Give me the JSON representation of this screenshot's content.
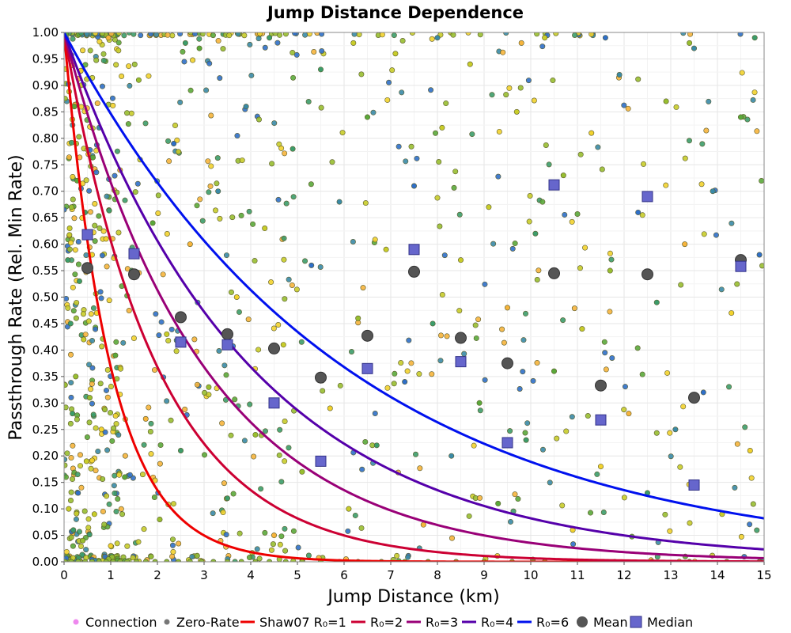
{
  "chart_data": {
    "type": "scatter",
    "title": "Jump Distance Dependence",
    "xlabel": "Jump Distance (km)",
    "ylabel": "Passthrough Rate (Rel. Min Rate)",
    "xlim": [
      0,
      15
    ],
    "ylim": [
      0,
      1
    ],
    "x_ticks": [
      "0",
      "1",
      "2",
      "3",
      "4",
      "5",
      "6",
      "7",
      "8",
      "9",
      "10",
      "11",
      "12",
      "13",
      "14",
      "15"
    ],
    "y_ticks": [
      "0.00",
      "0.05",
      "0.10",
      "0.15",
      "0.20",
      "0.25",
      "0.30",
      "0.35",
      "0.40",
      "0.45",
      "0.50",
      "0.55",
      "0.60",
      "0.65",
      "0.70",
      "0.75",
      "0.80",
      "0.85",
      "0.90",
      "0.95",
      "1.00"
    ],
    "grid": true,
    "legend_position": "bottom",
    "legend": [
      {
        "label": "Connection",
        "kind": "dot",
        "color": "#ee88ee"
      },
      {
        "label": "Zero-Rate",
        "kind": "dot",
        "color": "#777777"
      },
      {
        "label": "Shaw07 R₀=1",
        "kind": "line",
        "color": "#ee0000"
      },
      {
        "label": "R₀=2",
        "kind": "line",
        "color": "#cc0033"
      },
      {
        "label": "R₀=3",
        "kind": "line",
        "color": "#990077"
      },
      {
        "label": "R₀=4",
        "kind": "line",
        "color": "#5500aa"
      },
      {
        "label": "R₀=6",
        "kind": "line",
        "color": "#0011ee"
      },
      {
        "label": "Mean",
        "kind": "circle",
        "color": "#555555"
      },
      {
        "label": "Median",
        "kind": "square",
        "color": "#6666cc"
      }
    ],
    "curves": [
      {
        "name": "Shaw07 R₀=1",
        "formula": "exp(-x/R0)",
        "R0": 1,
        "color": "#ee0000"
      },
      {
        "name": "R₀=2",
        "formula": "exp(-x/R0)",
        "R0": 2,
        "color": "#cc0033"
      },
      {
        "name": "R₀=3",
        "formula": "exp(-x/R0)",
        "R0": 3,
        "color": "#990077"
      },
      {
        "name": "R₀=4",
        "formula": "exp(-x/R0)",
        "R0": 4,
        "color": "#5500aa"
      },
      {
        "name": "R₀=6",
        "formula": "exp(-x/R0)",
        "R0": 6,
        "color": "#0011ee"
      }
    ],
    "mean_points": [
      {
        "x": 0.5,
        "y": 0.555
      },
      {
        "x": 1.5,
        "y": 0.543
      },
      {
        "x": 2.5,
        "y": 0.462
      },
      {
        "x": 3.5,
        "y": 0.43
      },
      {
        "x": 4.5,
        "y": 0.403
      },
      {
        "x": 5.5,
        "y": 0.348
      },
      {
        "x": 6.5,
        "y": 0.427
      },
      {
        "x": 7.5,
        "y": 0.548
      },
      {
        "x": 8.5,
        "y": 0.423
      },
      {
        "x": 9.5,
        "y": 0.375
      },
      {
        "x": 10.5,
        "y": 0.545
      },
      {
        "x": 11.5,
        "y": 0.333
      },
      {
        "x": 12.5,
        "y": 0.543
      },
      {
        "x": 13.5,
        "y": 0.31
      },
      {
        "x": 14.5,
        "y": 0.57
      }
    ],
    "median_points": [
      {
        "x": 0.5,
        "y": 0.618
      },
      {
        "x": 1.5,
        "y": 0.582
      },
      {
        "x": 2.5,
        "y": 0.415
      },
      {
        "x": 3.5,
        "y": 0.41
      },
      {
        "x": 4.5,
        "y": 0.3
      },
      {
        "x": 5.5,
        "y": 0.19
      },
      {
        "x": 6.5,
        "y": 0.365
      },
      {
        "x": 7.5,
        "y": 0.59
      },
      {
        "x": 8.5,
        "y": 0.378
      },
      {
        "x": 9.5,
        "y": 0.225
      },
      {
        "x": 10.5,
        "y": 0.712
      },
      {
        "x": 11.5,
        "y": 0.268
      },
      {
        "x": 12.5,
        "y": 0.69
      },
      {
        "x": 13.5,
        "y": 0.145
      },
      {
        "x": 14.5,
        "y": 0.558
      }
    ],
    "connections": [
      {
        "x": 0.08,
        "y": 0.57
      },
      {
        "x": 0.1,
        "y": 0.1
      },
      {
        "x": 0.12,
        "y": 0.63
      },
      {
        "x": 0.14,
        "y": 0.45
      },
      {
        "x": 0.16,
        "y": 0.67
      },
      {
        "x": 0.18,
        "y": 0.28
      },
      {
        "x": 0.2,
        "y": 0.06
      },
      {
        "x": 0.22,
        "y": 0.86
      },
      {
        "x": 0.25,
        "y": 0.35
      },
      {
        "x": 0.28,
        "y": 0.72
      },
      {
        "x": 0.3,
        "y": 0.13
      },
      {
        "x": 0.33,
        "y": 0.53
      },
      {
        "x": 0.36,
        "y": 0.9
      },
      {
        "x": 0.4,
        "y": 0.04
      },
      {
        "x": 0.42,
        "y": 0.42
      },
      {
        "x": 0.45,
        "y": 0.66
      },
      {
        "x": 0.48,
        "y": 0.19
      },
      {
        "x": 0.52,
        "y": 0.77
      },
      {
        "x": 0.55,
        "y": 0.31
      },
      {
        "x": 0.6,
        "y": 0.58
      },
      {
        "x": 0.65,
        "y": 0.09
      },
      {
        "x": 0.7,
        "y": 0.47
      },
      {
        "x": 0.75,
        "y": 0.82
      },
      {
        "x": 0.8,
        "y": 0.25
      },
      {
        "x": 0.9,
        "y": 0.61
      },
      {
        "x": 1.0,
        "y": 0.03
      },
      {
        "x": 1.1,
        "y": 0.39
      },
      {
        "x": 1.2,
        "y": 0.74
      },
      {
        "x": 1.3,
        "y": 0.16
      },
      {
        "x": 1.45,
        "y": 0.55
      },
      {
        "x": 1.6,
        "y": 0.91
      },
      {
        "x": 1.75,
        "y": 0.27
      },
      {
        "x": 1.9,
        "y": 0.64
      },
      {
        "x": 2.05,
        "y": 0.08
      },
      {
        "x": 2.2,
        "y": 0.43
      },
      {
        "x": 2.35,
        "y": 0.79
      },
      {
        "x": 2.5,
        "y": 0.21
      },
      {
        "x": 2.7,
        "y": 0.6
      },
      {
        "x": 2.9,
        "y": 0.97
      },
      {
        "x": 3.1,
        "y": 0.33
      },
      {
        "x": 3.3,
        "y": 0.7
      },
      {
        "x": 3.5,
        "y": 0.12
      },
      {
        "x": 3.7,
        "y": 0.5
      },
      {
        "x": 3.9,
        "y": 0.86
      },
      {
        "x": 4.1,
        "y": 0.24
      },
      {
        "x": 4.3,
        "y": 0.63
      },
      {
        "x": 4.5,
        "y": 0.05
      },
      {
        "x": 4.7,
        "y": 0.41
      },
      {
        "x": 4.9,
        "y": 0.78
      },
      {
        "x": 5.1,
        "y": 0.17
      },
      {
        "x": 5.3,
        "y": 0.56
      },
      {
        "x": 5.5,
        "y": 0.93
      },
      {
        "x": 5.7,
        "y": 0.29
      },
      {
        "x": 5.9,
        "y": 0.68
      },
      {
        "x": 6.1,
        "y": 0.1
      },
      {
        "x": 6.3,
        "y": 0.46
      },
      {
        "x": 6.5,
        "y": 0.84
      },
      {
        "x": 6.7,
        "y": 0.22
      },
      {
        "x": 6.9,
        "y": 0.59
      },
      {
        "x": 7.1,
        "y": 0.96
      },
      {
        "x": 7.3,
        "y": 0.34
      },
      {
        "x": 7.5,
        "y": 0.71
      },
      {
        "x": 7.7,
        "y": 0.07
      },
      {
        "x": 7.9,
        "y": 0.45
      },
      {
        "x": 8.1,
        "y": 0.82
      },
      {
        "x": 8.3,
        "y": 0.2
      },
      {
        "x": 8.5,
        "y": 0.57
      },
      {
        "x": 8.7,
        "y": 0.94
      },
      {
        "x": 8.9,
        "y": 0.3
      },
      {
        "x": 9.1,
        "y": 0.67
      },
      {
        "x": 9.3,
        "y": 0.11
      },
      {
        "x": 9.5,
        "y": 0.48
      },
      {
        "x": 9.7,
        "y": 0.85
      },
      {
        "x": 9.9,
        "y": 0.23
      },
      {
        "x": 10.1,
        "y": 0.62
      },
      {
        "x": 10.3,
        "y": 0.99
      },
      {
        "x": 10.5,
        "y": 0.36
      },
      {
        "x": 10.7,
        "y": 0.73
      },
      {
        "x": 10.9,
        "y": 0.06
      },
      {
        "x": 11.1,
        "y": 0.44
      },
      {
        "x": 11.3,
        "y": 0.81
      },
      {
        "x": 11.5,
        "y": 0.18
      },
      {
        "x": 11.7,
        "y": 0.55
      },
      {
        "x": 11.9,
        "y": 0.92
      },
      {
        "x": 12.1,
        "y": 0.28
      },
      {
        "x": 12.3,
        "y": 0.66
      },
      {
        "x": 12.5,
        "y": 0.13
      },
      {
        "x": 12.7,
        "y": 0.49
      },
      {
        "x": 12.9,
        "y": 0.87
      },
      {
        "x": 13.1,
        "y": 0.25
      },
      {
        "x": 13.3,
        "y": 0.6
      },
      {
        "x": 13.5,
        "y": 0.97
      },
      {
        "x": 13.7,
        "y": 0.32
      },
      {
        "x": 13.9,
        "y": 0.7
      },
      {
        "x": 14.1,
        "y": 0.09
      },
      {
        "x": 14.3,
        "y": 0.47
      },
      {
        "x": 14.5,
        "y": 0.84
      },
      {
        "x": 14.7,
        "y": 0.21
      },
      {
        "x": 14.9,
        "y": 0.58
      },
      {
        "x": 0.05,
        "y": 0.98
      },
      {
        "x": 0.95,
        "y": 0.99
      },
      {
        "x": 2.6,
        "y": 0.98
      },
      {
        "x": 4.4,
        "y": 0.99
      },
      {
        "x": 6.2,
        "y": 0.98
      },
      {
        "x": 8.0,
        "y": 0.99
      },
      {
        "x": 9.8,
        "y": 0.98
      },
      {
        "x": 11.6,
        "y": 0.99
      },
      {
        "x": 13.4,
        "y": 0.98
      },
      {
        "x": 14.8,
        "y": 0.99
      }
    ],
    "zero_rate": [
      {
        "x": 0.02,
        "y": 0.0
      },
      {
        "x": 0.15,
        "y": 0.0
      },
      {
        "x": 0.3,
        "y": 0.0
      },
      {
        "x": 0.45,
        "y": 0.0
      },
      {
        "x": 0.6,
        "y": 0.0
      },
      {
        "x": 0.75,
        "y": 0.0
      },
      {
        "x": 0.9,
        "y": 0.0
      },
      {
        "x": 1.05,
        "y": 0.0
      },
      {
        "x": 1.2,
        "y": 0.0
      },
      {
        "x": 1.35,
        "y": 0.0
      },
      {
        "x": 1.55,
        "y": 0.0
      },
      {
        "x": 1.75,
        "y": 0.0
      },
      {
        "x": 1.95,
        "y": 0.0
      },
      {
        "x": 2.2,
        "y": 0.0
      },
      {
        "x": 2.45,
        "y": 0.0
      },
      {
        "x": 2.7,
        "y": 0.0
      },
      {
        "x": 2.95,
        "y": 0.0
      },
      {
        "x": 3.2,
        "y": 0.0
      },
      {
        "x": 3.5,
        "y": 0.0
      },
      {
        "x": 3.8,
        "y": 0.0
      },
      {
        "x": 4.1,
        "y": 0.0
      },
      {
        "x": 4.4,
        "y": 0.0
      },
      {
        "x": 4.75,
        "y": 0.0
      },
      {
        "x": 5.1,
        "y": 0.0
      },
      {
        "x": 5.5,
        "y": 0.0
      },
      {
        "x": 5.9,
        "y": 0.0
      },
      {
        "x": 6.3,
        "y": 0.0
      },
      {
        "x": 6.8,
        "y": 0.0
      },
      {
        "x": 7.3,
        "y": 0.0
      },
      {
        "x": 7.8,
        "y": 0.0
      },
      {
        "x": 8.4,
        "y": 0.0
      },
      {
        "x": 9.0,
        "y": 0.0
      },
      {
        "x": 9.6,
        "y": 0.0
      },
      {
        "x": 10.3,
        "y": 0.0
      },
      {
        "x": 11.0,
        "y": 0.0
      },
      {
        "x": 11.8,
        "y": 0.0
      },
      {
        "x": 12.6,
        "y": 0.0
      },
      {
        "x": 13.4,
        "y": 0.0
      },
      {
        "x": 14.2,
        "y": 0.0
      },
      {
        "x": 14.9,
        "y": 0.0
      }
    ],
    "scatter_colors": [
      "#f2d22e",
      "#c8cc2a",
      "#98be30",
      "#5aa83a",
      "#3c9c6a",
      "#3a8aa6",
      "#2f6fc8",
      "#f6b43c"
    ]
  }
}
